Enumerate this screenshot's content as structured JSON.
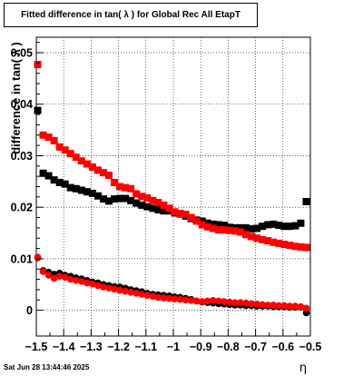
{
  "chart_data": {
    "type": "scatter",
    "title": "Fitted difference in tan( λ ) for Global Rec All EtapT",
    "xlabel": "η",
    "ylabel": "difference in tan( λ )",
    "xlim": [
      -1.5,
      -0.5
    ],
    "ylim": [
      -0.005,
      0.053
    ],
    "grid": true,
    "xticks": [
      -1.5,
      -1.4,
      -1.3,
      -1.2,
      -1.1,
      -1.0,
      -0.9,
      -0.8,
      -0.7,
      -0.6,
      -0.5
    ],
    "xtick_labels": [
      "−1.5",
      "−1.4",
      "−1.3",
      "−1.2",
      "−1.1",
      "−1",
      "−0.9",
      "−0.8",
      "−0.7",
      "−0.6",
      "−0.5"
    ],
    "yticks": [
      0,
      0.01,
      0.02,
      0.03,
      0.04,
      0.05
    ],
    "ytick_labels": [
      "0",
      "0.01",
      "0.02",
      "0.03",
      "0.04",
      "0.05"
    ],
    "series": [
      {
        "marker": "square",
        "color": "#000000",
        "x": [
          -1.495,
          -1.475,
          -1.455,
          -1.435,
          -1.415,
          -1.395,
          -1.375,
          -1.355,
          -1.335,
          -1.315,
          -1.295,
          -1.275,
          -1.255,
          -1.235,
          -1.215,
          -1.195,
          -1.175,
          -1.155,
          -1.135,
          -1.115,
          -1.095,
          -1.075,
          -1.055,
          -1.035,
          -1.015,
          -0.995,
          -0.975,
          -0.955,
          -0.935,
          -0.915,
          -0.895,
          -0.875,
          -0.855,
          -0.835,
          -0.815,
          -0.795,
          -0.775,
          -0.755,
          -0.735,
          -0.715,
          -0.695,
          -0.675,
          -0.655,
          -0.635,
          -0.615,
          -0.595,
          -0.575,
          -0.555,
          -0.535,
          -0.515
        ],
        "y": [
          0.0388,
          0.0266,
          0.0261,
          0.0253,
          0.0248,
          0.0245,
          0.0238,
          0.0236,
          0.0233,
          0.023,
          0.0227,
          0.0222,
          0.0216,
          0.0212,
          0.0216,
          0.0217,
          0.0217,
          0.0213,
          0.0208,
          0.0204,
          0.0201,
          0.0198,
          0.0195,
          0.0193,
          0.0193,
          0.0189,
          0.0187,
          0.0183,
          0.0178,
          0.0175,
          0.0173,
          0.0169,
          0.0167,
          0.0166,
          0.0165,
          0.0161,
          0.016,
          0.016,
          0.016,
          0.0158,
          0.0159,
          0.0163,
          0.0166,
          0.0167,
          0.0165,
          0.0163,
          0.0163,
          0.0164,
          0.0169,
          0.0211
        ]
      },
      {
        "marker": "square",
        "color": "#ff0000",
        "x": [
          -1.495,
          -1.475,
          -1.455,
          -1.435,
          -1.415,
          -1.395,
          -1.375,
          -1.355,
          -1.335,
          -1.315,
          -1.295,
          -1.275,
          -1.255,
          -1.235,
          -1.215,
          -1.195,
          -1.175,
          -1.155,
          -1.135,
          -1.115,
          -1.095,
          -1.075,
          -1.055,
          -1.035,
          -1.015,
          -0.995,
          -0.975,
          -0.955,
          -0.935,
          -0.915,
          -0.895,
          -0.875,
          -0.855,
          -0.835,
          -0.815,
          -0.795,
          -0.775,
          -0.755,
          -0.735,
          -0.715,
          -0.695,
          -0.675,
          -0.655,
          -0.635,
          -0.615,
          -0.595,
          -0.575,
          -0.555,
          -0.535,
          -0.515
        ],
        "y": [
          0.0477,
          0.034,
          0.0336,
          0.0329,
          0.0317,
          0.0311,
          0.0304,
          0.0297,
          0.029,
          0.0284,
          0.0278,
          0.0272,
          0.0267,
          0.0262,
          0.0248,
          0.024,
          0.0238,
          0.0236,
          0.0226,
          0.0221,
          0.0218,
          0.0213,
          0.0209,
          0.0204,
          0.0198,
          0.0191,
          0.0188,
          0.0186,
          0.018,
          0.0173,
          0.0166,
          0.0162,
          0.0159,
          0.0156,
          0.0156,
          0.0155,
          0.0154,
          0.0152,
          0.0147,
          0.0143,
          0.014,
          0.0137,
          0.0135,
          0.0132,
          0.013,
          0.0128,
          0.0126,
          0.0124,
          0.0123,
          0.0122
        ]
      },
      {
        "marker": "circle",
        "color": "#000000",
        "x": [
          -1.495,
          -1.475,
          -1.455,
          -1.435,
          -1.415,
          -1.395,
          -1.375,
          -1.355,
          -1.335,
          -1.315,
          -1.295,
          -1.275,
          -1.255,
          -1.235,
          -1.215,
          -1.195,
          -1.175,
          -1.155,
          -1.135,
          -1.115,
          -1.095,
          -1.075,
          -1.055,
          -1.035,
          -1.015,
          -0.995,
          -0.975,
          -0.955,
          -0.935,
          -0.915,
          -0.895,
          -0.875,
          -0.855,
          -0.835,
          -0.815,
          -0.795,
          -0.775,
          -0.755,
          -0.735,
          -0.715,
          -0.695,
          -0.675,
          -0.655,
          -0.635,
          -0.615,
          -0.595,
          -0.575,
          -0.555,
          -0.535,
          -0.515
        ],
        "y": [
          0.0102,
          0.0077,
          0.0074,
          0.007,
          0.0072,
          0.0068,
          0.0066,
          0.0063,
          0.0061,
          0.0058,
          0.0055,
          0.0053,
          0.005,
          0.0048,
          0.0046,
          0.0045,
          0.0043,
          0.004,
          0.0038,
          0.0036,
          0.0033,
          0.0031,
          0.003,
          0.0029,
          0.0028,
          0.0026,
          0.0025,
          0.0023,
          0.0021,
          0.0018,
          0.0016,
          0.0015,
          0.0014,
          0.0013,
          0.0012,
          0.0011,
          0.001,
          0.001,
          0.0009,
          0.0009,
          0.0008,
          0.0008,
          0.0008,
          0.0007,
          0.0007,
          0.0007,
          0.0006,
          0.0006,
          0.0006,
          -0.0005
        ]
      },
      {
        "marker": "circle",
        "color": "#ff0000",
        "x": [
          -1.495,
          -1.475,
          -1.455,
          -1.435,
          -1.415,
          -1.395,
          -1.375,
          -1.355,
          -1.335,
          -1.315,
          -1.295,
          -1.275,
          -1.255,
          -1.235,
          -1.215,
          -1.195,
          -1.175,
          -1.155,
          -1.135,
          -1.115,
          -1.095,
          -1.075,
          -1.055,
          -1.035,
          -1.015,
          -0.995,
          -0.975,
          -0.955,
          -0.935,
          -0.915,
          -0.895,
          -0.875,
          -0.855,
          -0.835,
          -0.815,
          -0.795,
          -0.775,
          -0.755,
          -0.735,
          -0.715,
          -0.695,
          -0.675,
          -0.655,
          -0.635,
          -0.615,
          -0.595,
          -0.575,
          -0.555,
          -0.535,
          -0.515
        ],
        "y": [
          0.0103,
          0.0075,
          0.0068,
          0.0062,
          0.0066,
          0.0064,
          0.006,
          0.0058,
          0.0056,
          0.0053,
          0.0051,
          0.0048,
          0.0045,
          0.0043,
          0.0041,
          0.0039,
          0.0037,
          0.0035,
          0.0033,
          0.0031,
          0.0029,
          0.0027,
          0.0025,
          0.0024,
          0.0023,
          0.0022,
          0.0021,
          0.002,
          0.0019,
          0.0018,
          0.0017,
          0.0018,
          0.0019,
          0.0018,
          0.0017,
          0.0016,
          0.0015,
          0.0015,
          0.0014,
          0.0013,
          0.0012,
          0.0011,
          0.001,
          0.001,
          0.0009,
          0.0009,
          0.0008,
          0.0008,
          0.0007,
          0.0004
        ]
      }
    ]
  },
  "timestamp": "Sat Jun 28 13:44:46 2025"
}
